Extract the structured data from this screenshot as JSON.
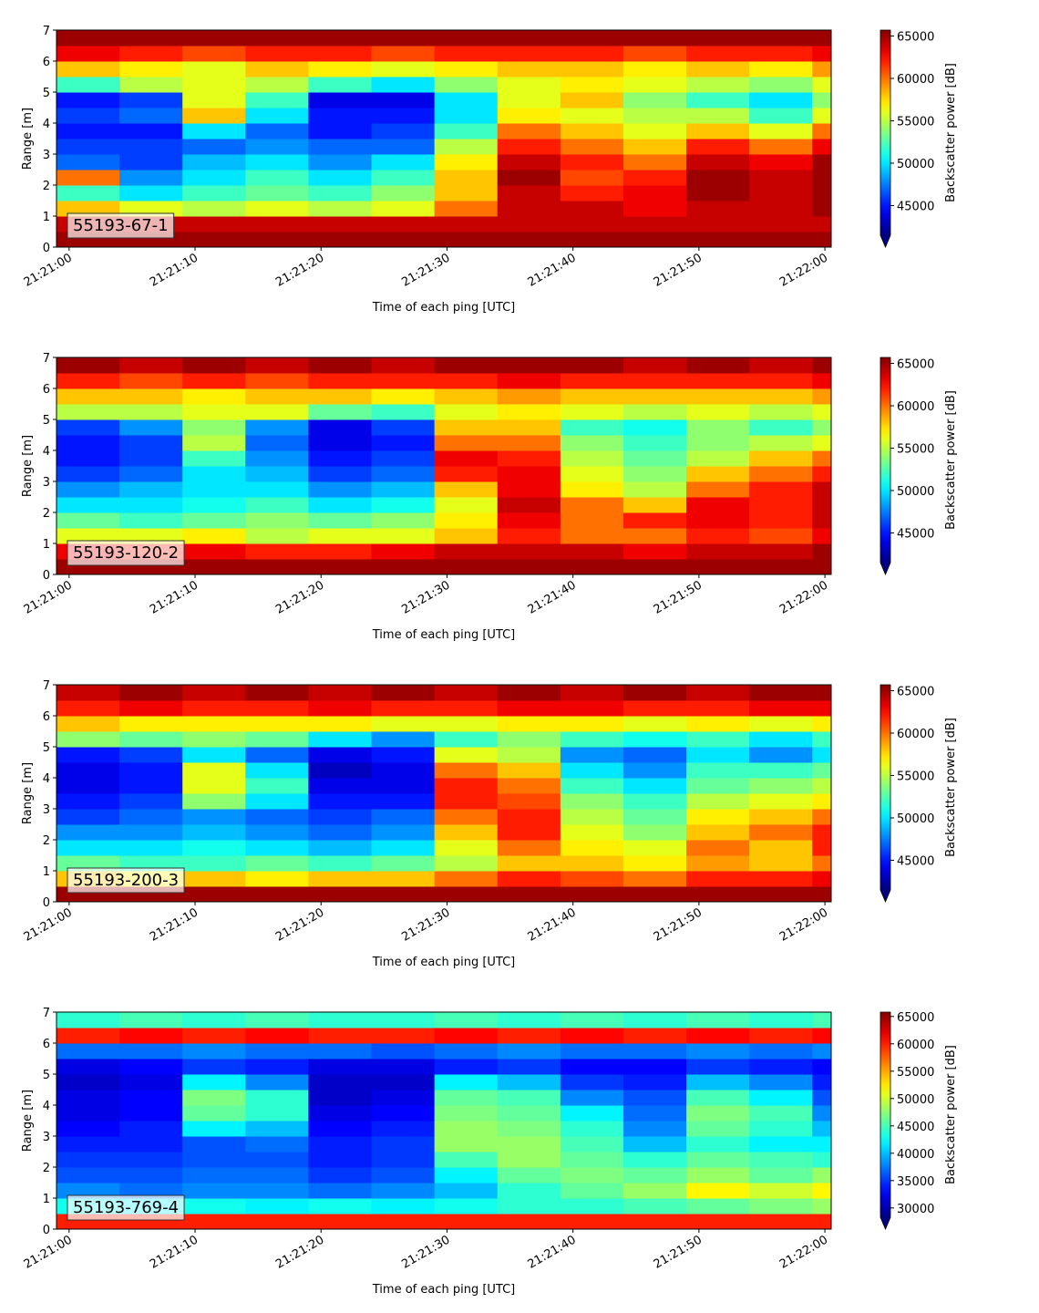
{
  "chart_data": [
    {
      "type": "heatmap",
      "label": "55193-67-1",
      "xlabel": "Time of each ping [UTC]",
      "ylabel": "Range [m]",
      "colorbar_label": "Backscatter power [dB]",
      "colormap": "jet",
      "extend": "min",
      "xlim": [
        "21:20:59",
        "21:22:00.5"
      ],
      "ylim": [
        0,
        7
      ],
      "clim": [
        41500,
        65700
      ],
      "xticks": [
        "21:21:00",
        "21:21:10",
        "21:21:20",
        "21:21:30",
        "21:21:40",
        "21:21:50",
        "21:22:00"
      ],
      "yticks": [
        0,
        1,
        2,
        3,
        4,
        5,
        6,
        7
      ],
      "cticks": [
        45000,
        50000,
        55000,
        60000,
        65000
      ],
      "xbins": [
        "21:20:59",
        "21:21:04",
        "21:21:09",
        "21:21:14",
        "21:21:19",
        "21:21:24",
        "21:21:29",
        "21:21:34",
        "21:21:39",
        "21:21:44",
        "21:21:49",
        "21:21:54",
        "21:21:59",
        "21:22:00.5"
      ],
      "ybins": [
        0,
        0.5,
        1,
        1.5,
        2,
        2.5,
        3,
        3.5,
        4,
        4.5,
        5,
        5.5,
        6,
        6.5,
        7
      ],
      "values": [
        [
          65000,
          65000,
          65000,
          65000,
          65000,
          65000,
          65000,
          65000,
          65000,
          65000,
          65000,
          65000,
          65000
        ],
        [
          64000,
          64000,
          64000,
          64000,
          64000,
          64000,
          64000,
          64000,
          64000,
          64000,
          64000,
          64000,
          64000
        ],
        [
          58000,
          56000,
          55000,
          56000,
          55000,
          56000,
          60000,
          64000,
          64000,
          63000,
          64000,
          64000,
          65000
        ],
        [
          52000,
          50000,
          52000,
          53000,
          52000,
          54000,
          58000,
          64000,
          62000,
          63000,
          65000,
          64000,
          65000
        ],
        [
          60000,
          48000,
          50000,
          52000,
          50000,
          52000,
          58000,
          65000,
          61000,
          62000,
          65000,
          64000,
          65000
        ],
        [
          47000,
          46000,
          49000,
          50000,
          48000,
          50000,
          57000,
          64000,
          62000,
          60000,
          64000,
          63000,
          65000
        ],
        [
          46000,
          46000,
          47000,
          48000,
          47000,
          47000,
          55000,
          62000,
          60000,
          58000,
          62000,
          60000,
          63000
        ],
        [
          45000,
          45000,
          50000,
          47000,
          45000,
          46000,
          52000,
          60000,
          58000,
          56000,
          58000,
          56000,
          60000
        ],
        [
          46000,
          47000,
          58000,
          50000,
          45000,
          45000,
          50000,
          57000,
          56000,
          55000,
          55000,
          52000,
          56000
        ],
        [
          45000,
          46000,
          56000,
          52000,
          44000,
          44000,
          50000,
          56000,
          58000,
          54000,
          52000,
          50000,
          54000
        ],
        [
          52000,
          55000,
          56000,
          55000,
          52000,
          50000,
          54000,
          56000,
          57000,
          56000,
          55000,
          54000,
          56000
        ],
        [
          58000,
          57000,
          56000,
          58000,
          57000,
          56000,
          57000,
          58000,
          58000,
          57000,
          58000,
          57000,
          59000
        ],
        [
          63000,
          62000,
          61000,
          62000,
          62000,
          61000,
          62000,
          62000,
          62000,
          61000,
          62000,
          62000,
          63000
        ],
        [
          65000,
          65000,
          65000,
          65000,
          65000,
          65000,
          65000,
          65000,
          65000,
          65000,
          65000,
          65000,
          65000
        ]
      ]
    },
    {
      "type": "heatmap",
      "label": "55193-120-2",
      "xlabel": "Time of each ping [UTC]",
      "ylabel": "Range [m]",
      "colorbar_label": "Backscatter power [dB]",
      "colormap": "jet",
      "extend": "min",
      "xlim": [
        "21:20:59",
        "21:22:00.5"
      ],
      "ylim": [
        0,
        7
      ],
      "clim": [
        41500,
        65700
      ],
      "xticks": [
        "21:21:00",
        "21:21:10",
        "21:21:20",
        "21:21:30",
        "21:21:40",
        "21:21:50",
        "21:22:00"
      ],
      "yticks": [
        0,
        1,
        2,
        3,
        4,
        5,
        6,
        7
      ],
      "cticks": [
        45000,
        50000,
        55000,
        60000,
        65000
      ],
      "xbins": [
        "21:20:59",
        "21:21:04",
        "21:21:09",
        "21:21:14",
        "21:21:19",
        "21:21:24",
        "21:21:29",
        "21:21:34",
        "21:21:39",
        "21:21:44",
        "21:21:49",
        "21:21:54",
        "21:21:59",
        "21:22:00.5"
      ],
      "ybins": [
        0,
        0.5,
        1,
        1.5,
        2,
        2.5,
        3,
        3.5,
        4,
        4.5,
        5,
        5.5,
        6,
        6.5,
        7
      ],
      "values": [
        [
          65000,
          65000,
          65000,
          65000,
          65000,
          65000,
          65000,
          65000,
          65000,
          65000,
          65000,
          65000,
          65000
        ],
        [
          63000,
          62000,
          63000,
          62000,
          62000,
          63000,
          64000,
          64000,
          64000,
          63000,
          64000,
          64000,
          65000
        ],
        [
          56000,
          56000,
          57000,
          55000,
          56000,
          56000,
          58000,
          62000,
          60000,
          60000,
          62000,
          61000,
          63000
        ],
        [
          53000,
          52000,
          53000,
          54000,
          53000,
          54000,
          57000,
          63000,
          60000,
          62000,
          63000,
          62000,
          64000
        ],
        [
          50000,
          50000,
          51000,
          52000,
          50000,
          51000,
          56000,
          64000,
          60000,
          58000,
          63000,
          62000,
          64000
        ],
        [
          48000,
          49000,
          50000,
          50000,
          48000,
          49000,
          58000,
          63000,
          57000,
          55000,
          60000,
          62000,
          64000
        ],
        [
          46000,
          47000,
          50000,
          49000,
          46000,
          47000,
          62000,
          63000,
          56000,
          54000,
          58000,
          60000,
          62000
        ],
        [
          45000,
          46000,
          52000,
          48000,
          45000,
          46000,
          63000,
          62000,
          55000,
          53000,
          55000,
          58000,
          60000
        ],
        [
          45000,
          46000,
          55000,
          47000,
          44000,
          45000,
          60000,
          60000,
          54000,
          52000,
          54000,
          55000,
          56000
        ],
        [
          46000,
          48000,
          54000,
          48000,
          44000,
          46000,
          58000,
          58000,
          52000,
          51000,
          54000,
          52000,
          54000
        ],
        [
          55000,
          55000,
          56000,
          56000,
          53000,
          52000,
          56000,
          57000,
          56000,
          55000,
          56000,
          55000,
          56000
        ],
        [
          58000,
          58000,
          57000,
          58000,
          58000,
          57000,
          58000,
          59000,
          58000,
          58000,
          58000,
          58000,
          59000
        ],
        [
          62000,
          61000,
          62000,
          61000,
          62000,
          62000,
          62000,
          63000,
          62000,
          62000,
          62000,
          62000,
          63000
        ],
        [
          65000,
          64000,
          65000,
          64000,
          65000,
          64000,
          65000,
          65000,
          65000,
          64000,
          65000,
          64000,
          65000
        ]
      ]
    },
    {
      "type": "heatmap",
      "label": "55193-200-3",
      "xlabel": "Time of each ping [UTC]",
      "ylabel": "Range [m]",
      "colorbar_label": "Backscatter power [dB]",
      "colormap": "jet",
      "extend": "min",
      "xlim": [
        "21:20:59",
        "21:22:00.5"
      ],
      "ylim": [
        0,
        7
      ],
      "clim": [
        41500,
        65700
      ],
      "xticks": [
        "21:21:00",
        "21:21:10",
        "21:21:20",
        "21:21:30",
        "21:21:40",
        "21:21:50",
        "21:22:00"
      ],
      "yticks": [
        0,
        1,
        2,
        3,
        4,
        5,
        6,
        7
      ],
      "cticks": [
        45000,
        50000,
        55000,
        60000,
        65000
      ],
      "xbins": [
        "21:20:59",
        "21:21:04",
        "21:21:09",
        "21:21:14",
        "21:21:19",
        "21:21:24",
        "21:21:29",
        "21:21:34",
        "21:21:39",
        "21:21:44",
        "21:21:49",
        "21:21:54",
        "21:21:59",
        "21:22:00.5"
      ],
      "ybins": [
        0,
        0.5,
        1,
        1.5,
        2,
        2.5,
        3,
        3.5,
        4,
        4.5,
        5,
        5.5,
        6,
        6.5,
        7
      ],
      "values": [
        [
          65000,
          65000,
          65000,
          65000,
          65000,
          65000,
          65000,
          65000,
          65000,
          65000,
          65000,
          65000,
          65000
        ],
        [
          58000,
          57000,
          58000,
          57000,
          58000,
          58000,
          60000,
          62000,
          61000,
          60000,
          62000,
          62000,
          63000
        ],
        [
          53000,
          52000,
          52000,
          53000,
          52000,
          53000,
          55000,
          58000,
          58000,
          57000,
          59000,
          58000,
          60000
        ],
        [
          50000,
          50000,
          51000,
          50000,
          49000,
          50000,
          56000,
          60000,
          57000,
          56000,
          60000,
          58000,
          62000
        ],
        [
          48000,
          48000,
          49000,
          48000,
          47000,
          48000,
          58000,
          62000,
          56000,
          54000,
          58000,
          60000,
          62000
        ],
        [
          46000,
          47000,
          48000,
          47000,
          46000,
          47000,
          60000,
          62000,
          55000,
          53000,
          57000,
          58000,
          60000
        ],
        [
          45000,
          46000,
          54000,
          50000,
          45000,
          45000,
          62000,
          61000,
          54000,
          52000,
          55000,
          56000,
          57000
        ],
        [
          44000,
          45000,
          56000,
          52000,
          44000,
          44000,
          62000,
          60000,
          52000,
          50000,
          53000,
          54000,
          55000
        ],
        [
          44000,
          45000,
          56000,
          50000,
          43000,
          44000,
          60000,
          58000,
          50000,
          48000,
          52000,
          52000,
          53000
        ],
        [
          45000,
          46000,
          50000,
          47000,
          44000,
          45000,
          56000,
          55000,
          48000,
          47000,
          50000,
          48000,
          50000
        ],
        [
          54000,
          53000,
          54000,
          53000,
          50000,
          48000,
          52000,
          54000,
          52000,
          51000,
          52000,
          50000,
          52000
        ],
        [
          58000,
          57000,
          57000,
          57000,
          57000,
          56000,
          56000,
          57000,
          57000,
          56000,
          57000,
          56000,
          57000
        ],
        [
          62000,
          63000,
          62000,
          62000,
          63000,
          62000,
          62000,
          63000,
          63000,
          62000,
          62000,
          63000,
          63000
        ],
        [
          64000,
          65000,
          64000,
          65000,
          64000,
          65000,
          64000,
          65000,
          64000,
          65000,
          64000,
          65000,
          65000
        ]
      ]
    },
    {
      "type": "heatmap",
      "label": "55193-769-4",
      "xlabel": "Time of each ping [UTC]",
      "ylabel": "Range [m]",
      "colorbar_label": "Backscatter power [dB]",
      "colormap": "jet",
      "extend": "min",
      "xlim": [
        "21:20:59",
        "21:22:00.5"
      ],
      "ylim": [
        0,
        7
      ],
      "clim": [
        28300,
        65800
      ],
      "xticks": [
        "21:21:00",
        "21:21:10",
        "21:21:20",
        "21:21:30",
        "21:21:40",
        "21:21:50",
        "21:22:00"
      ],
      "yticks": [
        0,
        1,
        2,
        3,
        4,
        5,
        6,
        7
      ],
      "cticks": [
        30000,
        35000,
        40000,
        45000,
        50000,
        55000,
        60000,
        65000
      ],
      "xbins": [
        "21:20:59",
        "21:21:04",
        "21:21:09",
        "21:21:14",
        "21:21:19",
        "21:21:24",
        "21:21:29",
        "21:21:34",
        "21:21:39",
        "21:21:44",
        "21:21:49",
        "21:21:54",
        "21:21:59",
        "21:22:00.5"
      ],
      "ybins": [
        0,
        0.5,
        1,
        1.5,
        2,
        2.5,
        3,
        3.5,
        4,
        4.5,
        5,
        5.5,
        6,
        6.5,
        7
      ],
      "values": [
        [
          60000,
          60000,
          60000,
          60000,
          60000,
          60000,
          60000,
          60000,
          60000,
          60000,
          60000,
          60000,
          60000
        ],
        [
          43000,
          42000,
          43000,
          42000,
          43000,
          42000,
          43000,
          44000,
          44000,
          45000,
          46000,
          47000,
          48000
        ],
        [
          38000,
          37000,
          38000,
          38000,
          37000,
          38000,
          40000,
          44000,
          46000,
          48000,
          52000,
          50000,
          52000
        ],
        [
          36000,
          36000,
          37000,
          37000,
          35000,
          36000,
          42000,
          46000,
          47000,
          46000,
          48000,
          46000,
          48000
        ],
        [
          35000,
          35000,
          36000,
          36000,
          34000,
          35000,
          45000,
          48000,
          46000,
          44000,
          46000,
          45000,
          44000
        ],
        [
          34000,
          34000,
          36000,
          37000,
          34000,
          35000,
          48000,
          48000,
          45000,
          40000,
          44000,
          42000,
          42000
        ],
        [
          33000,
          34000,
          42000,
          40000,
          33000,
          34000,
          48000,
          47000,
          44000,
          38000,
          46000,
          44000,
          40000
        ],
        [
          32000,
          33000,
          46000,
          44000,
          32000,
          33000,
          47000,
          46000,
          42000,
          37000,
          47000,
          45000,
          38000
        ],
        [
          32000,
          33000,
          47000,
          44000,
          31000,
          32000,
          46000,
          45000,
          38000,
          36000,
          45000,
          42000,
          36000
        ],
        [
          31000,
          32000,
          42000,
          38000,
          31000,
          31000,
          42000,
          40000,
          35000,
          34000,
          40000,
          38000,
          34000
        ],
        [
          32000,
          33000,
          35000,
          34000,
          32000,
          32000,
          34000,
          35000,
          33000,
          33000,
          35000,
          34000,
          33000
        ],
        [
          37000,
          37000,
          38000,
          37000,
          37000,
          36000,
          37000,
          38000,
          37000,
          37000,
          38000,
          37000,
          38000
        ],
        [
          60000,
          61000,
          60000,
          61000,
          60000,
          60000,
          61000,
          60000,
          61000,
          60000,
          61000,
          60000,
          61000
        ],
        [
          44000,
          45000,
          44000,
          45000,
          44000,
          44000,
          45000,
          44000,
          45000,
          44000,
          45000,
          44000,
          45000
        ]
      ]
    }
  ]
}
